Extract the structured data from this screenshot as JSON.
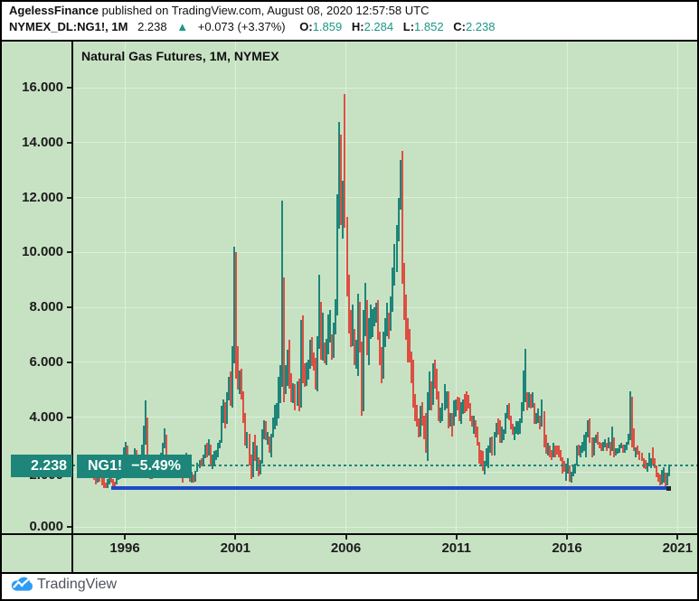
{
  "header": {
    "author": "AgelessFinance",
    "published_text": "published on TradingView.com, August 08, 2020 12:57:58 UTC",
    "symbol": "NYMEX_DL:NG1!, 1M",
    "last_price": "2.238",
    "arrow_up": "▲",
    "change_text": "+0.073 (+3.37%)",
    "ohlc": {
      "o_label": "O:",
      "o": "1.859",
      "h_label": "H:",
      "h": "2.284",
      "l_label": "L:",
      "l": "1.852",
      "c_label": "C:",
      "c": "2.238"
    }
  },
  "chart": {
    "title": "Natural Gas Futures, 1M, NYMEX",
    "price_axis_badge": "2.238",
    "symbol_badge_name": "NG1!",
    "symbol_badge_change": "−5.49%"
  },
  "footer": {
    "brand": "TradingView"
  },
  "colors": {
    "background": "#c7e2c3",
    "up_bar": "#1d8579",
    "down_bar": "#dd4f43",
    "badge": "#1d8579",
    "price_line": "#1d8579",
    "support_line": "#1e49c8",
    "header_value_teal": "#1d9687",
    "gridline": "#dcefd8"
  },
  "chart_data": {
    "type": "bar",
    "subtype": "ohlc-high-low-monthly",
    "title": "Natural Gas Futures, 1M, NYMEX",
    "symbol": "NYMEX_DL:NG1!",
    "interval": "1M",
    "x_axis": {
      "ticks": [
        1996,
        2001,
        2006,
        2011,
        2016,
        2021
      ],
      "range": [
        1994.2,
        2021.3
      ]
    },
    "y_axis": {
      "ticks": [
        16,
        14,
        12,
        10,
        8,
        6,
        4,
        2,
        0
      ],
      "tick_labels": [
        "16.000",
        "14.000",
        "12.000",
        "10.000",
        "8.000",
        "6.000",
        "4.000",
        "2.000",
        "0.000"
      ],
      "range": [
        0,
        17.6
      ]
    },
    "current_price": 2.238,
    "current_bar": {
      "open": 1.859,
      "high": 2.284,
      "low": 1.852,
      "close": 2.238
    },
    "support_line": {
      "value": 1.4,
      "from": "1995-06",
      "to": "2020-08"
    },
    "start_month": "1994-04",
    "bars_format": "[high, low, direction] with direction 1=up(teal) 0=down(red)",
    "bars": [
      [
        2.2,
        1.95,
        0
      ],
      [
        2.15,
        1.85,
        0
      ],
      [
        2.25,
        1.9,
        1
      ],
      [
        2.2,
        1.85,
        0
      ],
      [
        2.0,
        1.7,
        0
      ],
      [
        1.85,
        1.55,
        0
      ],
      [
        1.95,
        1.6,
        1
      ],
      [
        2.0,
        1.65,
        0
      ],
      [
        1.9,
        1.5,
        0
      ],
      [
        1.8,
        1.42,
        0
      ],
      [
        1.6,
        1.4,
        0
      ],
      [
        1.75,
        1.42,
        1
      ],
      [
        1.8,
        1.55,
        1
      ],
      [
        1.85,
        1.6,
        0
      ],
      [
        1.75,
        1.45,
        0
      ],
      [
        1.65,
        1.4,
        0
      ],
      [
        1.9,
        1.55,
        1
      ],
      [
        2.05,
        1.7,
        1
      ],
      [
        2.1,
        1.75,
        1
      ],
      [
        2.45,
        1.9,
        1
      ],
      [
        2.9,
        2.2,
        1
      ],
      [
        3.1,
        2.3,
        1
      ],
      [
        2.95,
        2.1,
        0
      ],
      [
        2.4,
        2.05,
        1
      ],
      [
        2.35,
        2.0,
        1
      ],
      [
        2.45,
        2.1,
        1
      ],
      [
        2.85,
        2.25,
        1
      ],
      [
        2.8,
        2.15,
        0
      ],
      [
        2.3,
        1.85,
        0
      ],
      [
        2.4,
        1.8,
        1
      ],
      [
        3.0,
        2.1,
        1
      ],
      [
        3.7,
        2.6,
        1
      ],
      [
        4.6,
        3.0,
        1
      ],
      [
        4.0,
        2.55,
        0
      ],
      [
        2.65,
        1.75,
        0
      ],
      [
        2.1,
        1.75,
        1
      ],
      [
        2.2,
        1.9,
        1
      ],
      [
        2.35,
        2.05,
        1
      ],
      [
        2.3,
        2.0,
        0
      ],
      [
        2.25,
        1.95,
        1
      ],
      [
        2.7,
        2.1,
        1
      ],
      [
        3.05,
        2.45,
        1
      ],
      [
        3.6,
        2.85,
        1
      ],
      [
        3.35,
        2.5,
        0
      ],
      [
        2.6,
        2.15,
        0
      ],
      [
        2.4,
        2.0,
        1
      ],
      [
        2.45,
        2.1,
        0
      ],
      [
        2.55,
        2.15,
        1
      ],
      [
        2.6,
        2.25,
        0
      ],
      [
        2.35,
        2.05,
        1
      ],
      [
        2.55,
        2.1,
        0
      ],
      [
        2.5,
        1.95,
        0
      ],
      [
        2.05,
        1.61,
        0
      ],
      [
        2.55,
        1.85,
        1
      ],
      [
        2.7,
        1.9,
        1
      ],
      [
        2.65,
        1.98,
        0
      ],
      [
        2.1,
        1.65,
        0
      ],
      [
        2.0,
        1.62,
        1
      ],
      [
        1.9,
        1.6,
        0
      ],
      [
        2.05,
        1.63,
        1
      ],
      [
        2.35,
        2.0,
        1
      ],
      [
        2.45,
        2.15,
        1
      ],
      [
        2.5,
        2.2,
        0
      ],
      [
        2.65,
        2.2,
        1
      ],
      [
        3.0,
        2.5,
        1
      ],
      [
        3.05,
        2.55,
        0
      ],
      [
        3.2,
        2.6,
        1
      ],
      [
        3.0,
        2.2,
        0
      ],
      [
        2.65,
        2.1,
        1
      ],
      [
        2.75,
        2.25,
        1
      ],
      [
        2.8,
        2.45,
        1
      ],
      [
        3.05,
        2.55,
        1
      ],
      [
        3.15,
        2.85,
        1
      ],
      [
        4.4,
        3.05,
        1
      ],
      [
        4.65,
        3.8,
        1
      ],
      [
        4.55,
        3.6,
        0
      ],
      [
        4.9,
        3.75,
        1
      ],
      [
        5.45,
        4.6,
        1
      ],
      [
        5.65,
        4.4,
        0
      ],
      [
        6.6,
        4.35,
        1
      ],
      [
        10.2,
        5.95,
        1
      ],
      [
        10.0,
        5.4,
        0
      ],
      [
        6.6,
        5.0,
        0
      ],
      [
        5.7,
        4.85,
        1
      ],
      [
        5.75,
        4.65,
        0
      ],
      [
        4.95,
        3.8,
        0
      ],
      [
        4.15,
        2.95,
        0
      ],
      [
        3.45,
        2.85,
        1
      ],
      [
        3.4,
        2.25,
        0
      ],
      [
        2.65,
        1.76,
        0
      ],
      [
        3.1,
        1.8,
        1
      ],
      [
        3.35,
        2.4,
        0
      ],
      [
        2.95,
        2.05,
        1
      ],
      [
        2.55,
        1.85,
        0
      ],
      [
        2.45,
        1.9,
        1
      ],
      [
        3.55,
        2.3,
        1
      ],
      [
        3.9,
        3.2,
        1
      ],
      [
        3.85,
        3.15,
        0
      ],
      [
        3.45,
        3.0,
        1
      ],
      [
        3.3,
        2.7,
        0
      ],
      [
        3.4,
        2.55,
        1
      ],
      [
        4.0,
        3.25,
        1
      ],
      [
        4.45,
        3.55,
        1
      ],
      [
        4.5,
        3.7,
        1
      ],
      [
        5.45,
        3.95,
        1
      ],
      [
        5.9,
        4.5,
        1
      ],
      [
        11.9,
        5.1,
        1
      ],
      [
        9.1,
        4.55,
        0
      ],
      [
        5.9,
        4.85,
        1
      ],
      [
        6.45,
        5.15,
        1
      ],
      [
        6.8,
        5.05,
        0
      ],
      [
        5.6,
        4.55,
        0
      ],
      [
        5.25,
        4.5,
        1
      ],
      [
        5.2,
        4.25,
        0
      ],
      [
        5.3,
        4.4,
        1
      ],
      [
        5.4,
        4.2,
        0
      ],
      [
        7.55,
        4.35,
        1
      ],
      [
        7.7,
        5.25,
        0
      ],
      [
        5.95,
        5.1,
        0
      ],
      [
        6.0,
        5.15,
        1
      ],
      [
        6.1,
        5.35,
        1
      ],
      [
        6.8,
        5.75,
        1
      ],
      [
        6.9,
        5.85,
        0
      ],
      [
        6.35,
        5.7,
        0
      ],
      [
        6.15,
        5.0,
        0
      ],
      [
        6.95,
        4.95,
        1
      ],
      [
        9.2,
        6.5,
        1
      ],
      [
        8.2,
        6.1,
        0
      ],
      [
        7.8,
        6.05,
        1
      ],
      [
        6.7,
        5.95,
        0
      ],
      [
        6.85,
        5.9,
        1
      ],
      [
        7.75,
        6.3,
        1
      ],
      [
        7.9,
        6.7,
        1
      ],
      [
        7.0,
        6.1,
        0
      ],
      [
        7.45,
        6.15,
        1
      ],
      [
        8.3,
        7.0,
        1
      ],
      [
        12.1,
        7.7,
        1
      ],
      [
        14.75,
        10.85,
        1
      ],
      [
        14.3,
        11.0,
        0
      ],
      [
        12.6,
        10.5,
        1
      ],
      [
        15.78,
        10.9,
        0
      ],
      [
        11.3,
        8.4,
        0
      ],
      [
        9.2,
        7.05,
        0
      ],
      [
        7.9,
        6.55,
        0
      ],
      [
        8.1,
        6.6,
        1
      ],
      [
        7.2,
        5.9,
        0
      ],
      [
        6.8,
        5.75,
        1
      ],
      [
        8.5,
        5.5,
        1
      ],
      [
        8.2,
        6.35,
        0
      ],
      [
        6.75,
        4.05,
        0
      ],
      [
        7.9,
        4.2,
        1
      ],
      [
        8.9,
        6.95,
        1
      ],
      [
        8.25,
        6.25,
        0
      ],
      [
        7.6,
        5.9,
        1
      ],
      [
        8.1,
        6.85,
        1
      ],
      [
        7.95,
        6.9,
        1
      ],
      [
        8.0,
        7.3,
        1
      ],
      [
        8.15,
        7.45,
        1
      ],
      [
        8.25,
        6.8,
        0
      ],
      [
        7.1,
        5.9,
        0
      ],
      [
        6.55,
        5.25,
        0
      ],
      [
        7.1,
        5.4,
        1
      ],
      [
        7.6,
        6.55,
        1
      ],
      [
        8.15,
        6.95,
        1
      ],
      [
        7.8,
        6.85,
        0
      ],
      [
        8.4,
        7.15,
        1
      ],
      [
        9.45,
        7.85,
        1
      ],
      [
        10.3,
        8.8,
        1
      ],
      [
        11.0,
        9.3,
        1
      ],
      [
        12.0,
        10.4,
        1
      ],
      [
        13.35,
        11.55,
        1
      ],
      [
        13.69,
        8.85,
        0
      ],
      [
        9.6,
        7.55,
        0
      ],
      [
        8.45,
        6.8,
        0
      ],
      [
        7.6,
        6.0,
        0
      ],
      [
        7.2,
        6.0,
        0
      ],
      [
        6.4,
        5.25,
        0
      ],
      [
        6.1,
        4.35,
        0
      ],
      [
        4.85,
        3.85,
        0
      ],
      [
        4.45,
        3.65,
        0
      ],
      [
        3.95,
        3.25,
        0
      ],
      [
        4.4,
        3.3,
        1
      ],
      [
        4.55,
        3.7,
        0
      ],
      [
        4.05,
        3.2,
        0
      ],
      [
        4.15,
        2.69,
        0
      ],
      [
        4.9,
        2.41,
        1
      ],
      [
        5.65,
        4.25,
        1
      ],
      [
        5.3,
        4.25,
        0
      ],
      [
        5.95,
        4.45,
        1
      ],
      [
        6.1,
        5.05,
        0
      ],
      [
        5.75,
        4.65,
        0
      ],
      [
        4.95,
        3.85,
        0
      ],
      [
        4.35,
        3.8,
        1
      ],
      [
        4.5,
        3.85,
        1
      ],
      [
        5.2,
        4.25,
        1
      ],
      [
        4.95,
        4.3,
        1
      ],
      [
        4.95,
        3.6,
        0
      ],
      [
        4.15,
        3.65,
        1
      ],
      [
        4.15,
        3.3,
        0
      ],
      [
        4.6,
        3.7,
        1
      ],
      [
        4.65,
        4.0,
        1
      ],
      [
        4.75,
        4.25,
        0
      ],
      [
        4.7,
        3.85,
        0
      ],
      [
        4.55,
        3.75,
        1
      ],
      [
        4.65,
        4.1,
        1
      ],
      [
        4.85,
        4.15,
        0
      ],
      [
        4.95,
        4.2,
        0
      ],
      [
        4.8,
        4.3,
        0
      ],
      [
        4.5,
        3.85,
        0
      ],
      [
        4.05,
        3.65,
        0
      ],
      [
        4.05,
        3.4,
        1
      ],
      [
        3.9,
        3.25,
        0
      ],
      [
        3.65,
        2.95,
        0
      ],
      [
        3.1,
        2.3,
        0
      ],
      [
        2.8,
        2.25,
        0
      ],
      [
        2.75,
        2.03,
        0
      ],
      [
        2.4,
        1.9,
        1
      ],
      [
        2.85,
        2.2,
        1
      ],
      [
        2.95,
        2.15,
        1
      ],
      [
        3.25,
        2.7,
        1
      ],
      [
        3.3,
        2.6,
        0
      ],
      [
        3.45,
        2.6,
        1
      ],
      [
        3.8,
        3.25,
        1
      ],
      [
        3.95,
        3.35,
        0
      ],
      [
        3.9,
        3.05,
        0
      ],
      [
        3.65,
        3.05,
        1
      ],
      [
        3.55,
        3.15,
        1
      ],
      [
        4.15,
        3.4,
        1
      ],
      [
        4.45,
        3.95,
        1
      ],
      [
        4.5,
        3.9,
        0
      ],
      [
        4.05,
        3.55,
        0
      ],
      [
        3.75,
        3.35,
        0
      ],
      [
        3.65,
        3.15,
        1
      ],
      [
        3.85,
        3.4,
        1
      ],
      [
        3.85,
        3.35,
        1
      ],
      [
        3.95,
        3.4,
        1
      ],
      [
        4.55,
        3.8,
        1
      ],
      [
        5.7,
        4.2,
        1
      ],
      [
        6.49,
        4.55,
        1
      ],
      [
        4.9,
        4.25,
        0
      ],
      [
        4.9,
        4.35,
        1
      ],
      [
        4.85,
        4.3,
        0
      ],
      [
        4.9,
        4.35,
        1
      ],
      [
        4.5,
        3.75,
        0
      ],
      [
        4.15,
        3.75,
        1
      ],
      [
        4.3,
        3.8,
        1
      ],
      [
        4.05,
        3.55,
        0
      ],
      [
        4.65,
        3.65,
        1
      ],
      [
        4.2,
        2.9,
        0
      ],
      [
        3.35,
        2.65,
        0
      ],
      [
        3.05,
        2.6,
        1
      ],
      [
        2.95,
        2.55,
        0
      ],
      [
        2.8,
        2.45,
        0
      ],
      [
        3.05,
        2.55,
        1
      ],
      [
        2.95,
        2.55,
        0
      ],
      [
        2.95,
        2.65,
        0
      ],
      [
        2.95,
        2.55,
        0
      ],
      [
        2.8,
        2.4,
        0
      ],
      [
        2.55,
        1.95,
        0
      ],
      [
        2.4,
        2.0,
        0
      ],
      [
        2.3,
        1.68,
        1
      ],
      [
        2.5,
        1.95,
        1
      ],
      [
        2.25,
        1.65,
        0
      ],
      [
        2.0,
        1.61,
        1
      ],
      [
        2.2,
        1.85,
        1
      ],
      [
        2.3,
        1.95,
        1
      ],
      [
        2.95,
        2.25,
        1
      ],
      [
        3.0,
        2.6,
        0
      ],
      [
        2.95,
        2.55,
        1
      ],
      [
        3.1,
        2.7,
        1
      ],
      [
        3.35,
        2.75,
        1
      ],
      [
        3.45,
        2.55,
        1
      ],
      [
        3.9,
        3.25,
        1
      ],
      [
        3.95,
        3.05,
        0
      ],
      [
        3.25,
        2.55,
        0
      ],
      [
        3.25,
        2.6,
        1
      ],
      [
        3.35,
        3.05,
        1
      ],
      [
        3.45,
        3.0,
        0
      ],
      [
        3.1,
        2.85,
        0
      ],
      [
        3.05,
        2.75,
        0
      ],
      [
        3.1,
        2.75,
        1
      ],
      [
        3.2,
        2.9,
        1
      ],
      [
        3.05,
        2.75,
        0
      ],
      [
        3.25,
        2.85,
        1
      ],
      [
        3.1,
        2.6,
        0
      ],
      [
        3.65,
        2.75,
        1
      ],
      [
        3.25,
        2.55,
        0
      ],
      [
        2.85,
        2.6,
        1
      ],
      [
        2.85,
        2.65,
        1
      ],
      [
        3.0,
        2.7,
        1
      ],
      [
        3.05,
        2.85,
        1
      ],
      [
        3.0,
        2.7,
        0
      ],
      [
        3.0,
        2.7,
        1
      ],
      [
        3.1,
        2.8,
        1
      ],
      [
        3.4,
        3.0,
        1
      ],
      [
        4.93,
        3.15,
        1
      ],
      [
        4.75,
        2.9,
        0
      ],
      [
        3.6,
        2.75,
        0
      ],
      [
        2.9,
        2.55,
        1
      ],
      [
        2.95,
        2.65,
        0
      ],
      [
        2.75,
        2.45,
        0
      ],
      [
        2.7,
        2.4,
        0
      ],
      [
        2.5,
        2.15,
        0
      ],
      [
        2.45,
        2.1,
        0
      ],
      [
        2.35,
        2.02,
        1
      ],
      [
        2.7,
        2.2,
        1
      ],
      [
        2.5,
        2.15,
        1
      ],
      [
        2.9,
        2.25,
        0
      ],
      [
        2.5,
        2.15,
        0
      ],
      [
        2.25,
        1.8,
        0
      ],
      [
        1.98,
        1.64,
        0
      ],
      [
        1.9,
        1.52,
        0
      ],
      [
        2.08,
        1.55,
        1
      ],
      [
        2.16,
        1.6,
        1
      ],
      [
        1.96,
        1.43,
        0
      ],
      [
        1.98,
        1.5,
        1
      ],
      [
        2.284,
        1.852,
        1
      ]
    ]
  }
}
